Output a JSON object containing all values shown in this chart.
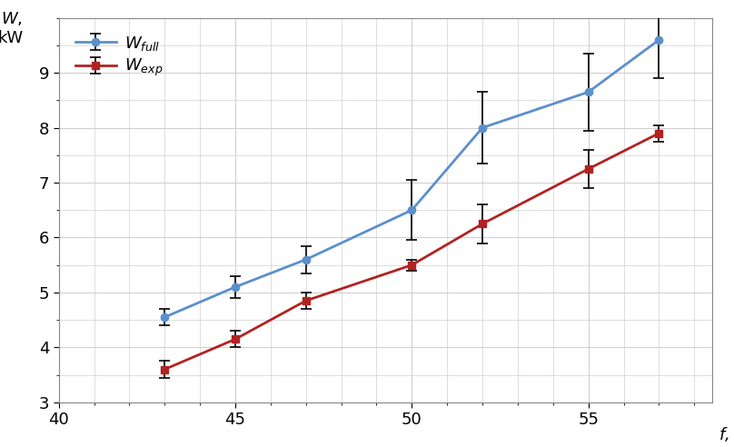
{
  "x": [
    43,
    45,
    47,
    50,
    52,
    55,
    57
  ],
  "W_full": [
    4.55,
    5.1,
    5.6,
    6.5,
    8.0,
    8.65,
    9.6
  ],
  "W_exp": [
    3.6,
    4.15,
    4.85,
    5.5,
    6.25,
    7.25,
    7.9
  ],
  "W_full_err": [
    0.15,
    0.2,
    0.25,
    0.55,
    0.65,
    0.7,
    0.7
  ],
  "W_exp_err": [
    0.15,
    0.15,
    0.15,
    0.1,
    0.35,
    0.35,
    0.15
  ],
  "color_full": "#5B8FCC",
  "color_exp": "#B22222",
  "marker_full": "o",
  "marker_exp": "s",
  "xlim": [
    40,
    58.5
  ],
  "ylim": [
    3.0,
    10.0
  ],
  "xticks": [
    40,
    45,
    50,
    55
  ],
  "yticks": [
    3,
    4,
    5,
    6,
    7,
    8,
    9
  ],
  "xlabel": "$\\mathit{f}$, Hz",
  "ylabel": "$\\mathit{W}$,\nkW",
  "legend_full": "$W_{full}$",
  "legend_exp": "$W_{exp}$",
  "grid_color": "#d0d0d0",
  "bg_color": "#ffffff"
}
